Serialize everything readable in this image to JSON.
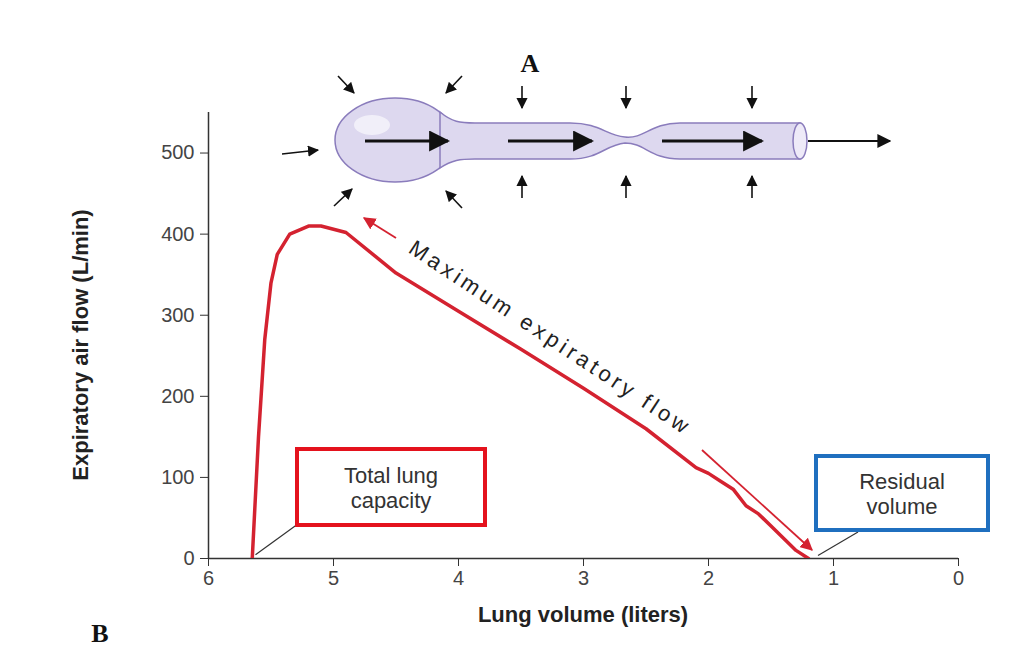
{
  "chart_data": {
    "type": "line",
    "panel_labels": [
      "A",
      "B"
    ],
    "x_label": "Lung volume (liters)",
    "y_label": "Expiratory air flow (L/min)",
    "annotations": {
      "total_lung_capacity": "Total lung capacity",
      "maximum_expiratory_flow": "Maximum expiratory flow",
      "residual_volume": "Residual volume"
    },
    "x": [
      5.65,
      5.6,
      5.55,
      5.5,
      5.45,
      5.35,
      5.2,
      5.1,
      4.9,
      4.5,
      4.0,
      3.5,
      3.0,
      2.5,
      2.1,
      2.0,
      1.9,
      1.8,
      1.7,
      1.6,
      1.5,
      1.4,
      1.3,
      1.2
    ],
    "values": [
      0,
      150,
      270,
      340,
      375,
      400,
      410,
      410,
      402,
      352,
      305,
      258,
      210,
      160,
      112,
      105,
      95,
      85,
      65,
      55,
      40,
      25,
      10,
      0
    ],
    "color": "#d42230",
    "marker": "none",
    "line_style": "solid",
    "xlim": [
      6,
      0
    ],
    "ylim": [
      0,
      550
    ],
    "xticks": [
      6,
      5,
      4,
      3,
      2,
      1,
      0
    ],
    "yticks": [
      0,
      100,
      200,
      300,
      400,
      500
    ],
    "grid": false
  }
}
